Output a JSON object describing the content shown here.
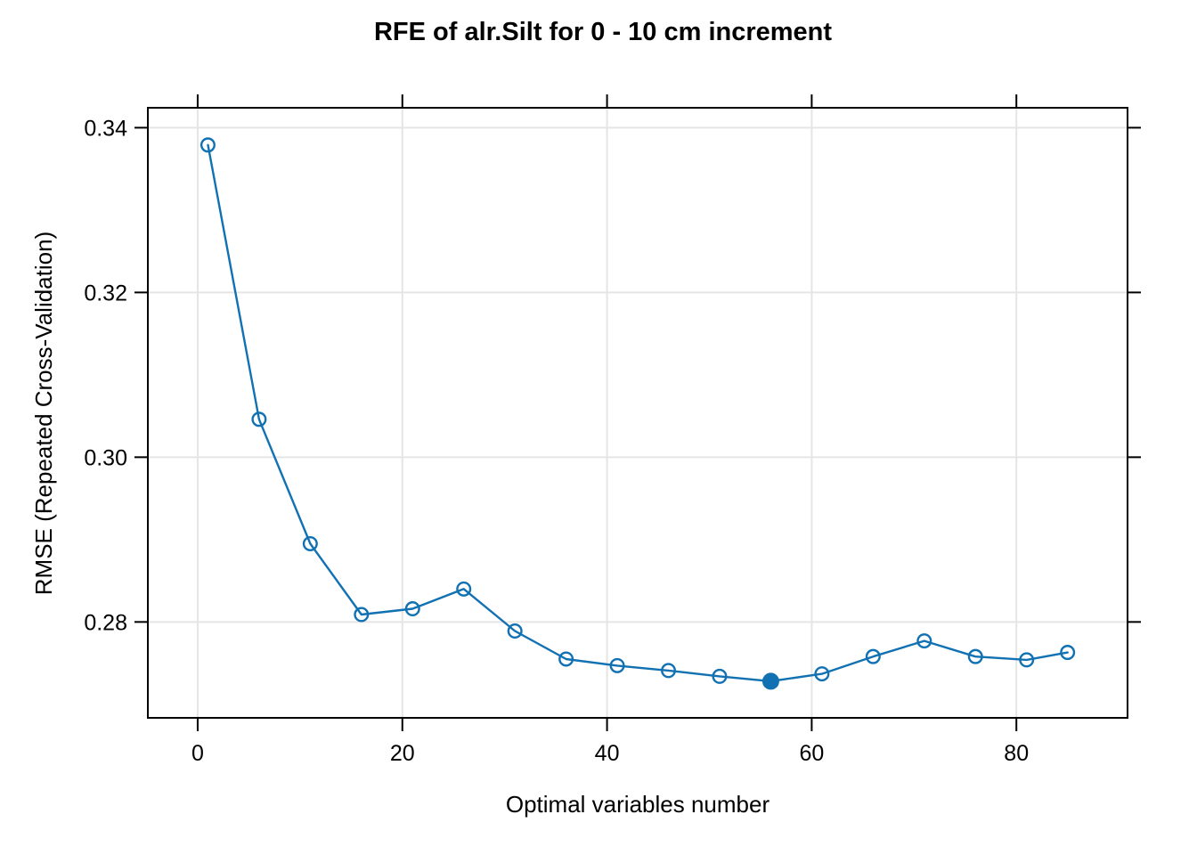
{
  "chart_data": {
    "type": "line",
    "title": "RFE of alr.Silt for 0 - 10 cm increment",
    "xlabel": "Optimal variables number",
    "ylabel": "RMSE (Repeated Cross-Validation)",
    "x": [
      1,
      6,
      11,
      16,
      21,
      26,
      31,
      36,
      41,
      46,
      51,
      56,
      61,
      66,
      71,
      76,
      81,
      85
    ],
    "values": [
      0.3379,
      0.3046,
      0.2895,
      0.2809,
      0.2816,
      0.284,
      0.2789,
      0.2755,
      0.2747,
      0.2741,
      0.2734,
      0.2728,
      0.2737,
      0.2758,
      0.2777,
      0.2758,
      0.2754,
      0.2763
    ],
    "selected_point": {
      "x": 56,
      "value": 0.2728
    },
    "x_ticks": [
      0,
      20,
      40,
      60,
      80
    ],
    "x_tick_labels": [
      "0",
      "20",
      "40",
      "60",
      "80"
    ],
    "y_ticks": [
      0.28,
      0.3,
      0.32,
      0.34
    ],
    "y_tick_labels": [
      "0.28",
      "0.30",
      "0.32",
      "0.34"
    ],
    "xlim": [
      -4.87,
      90.86
    ],
    "ylim": [
      0.26836,
      0.34242
    ],
    "grid": true,
    "legend_position": "none",
    "marker": "open-circle",
    "selected_marker": "filled-circle",
    "colors": {
      "series": "#1171B2",
      "grid": "#E5E5E5",
      "axis": "#000000",
      "text": "#000000",
      "background": "#FFFFFF"
    }
  }
}
